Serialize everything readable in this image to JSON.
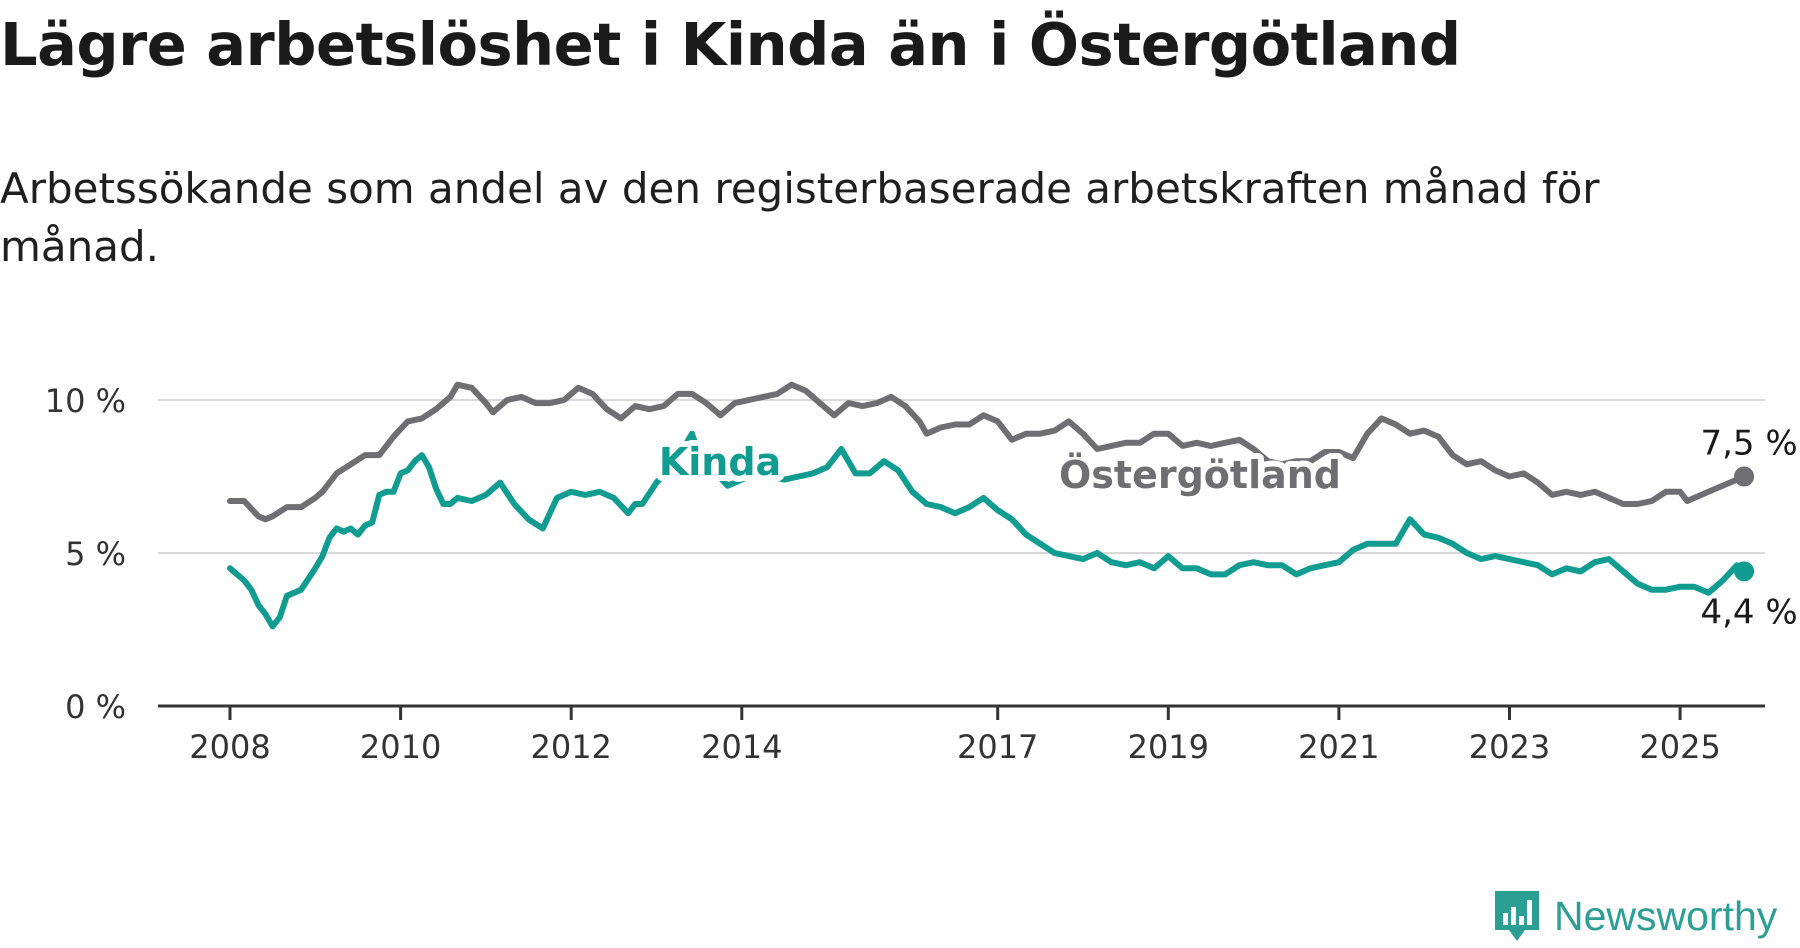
{
  "header": {
    "title": "Lägre arbetslöshet i Kinda än i Östergötland",
    "subtitle": "Arbetssökande som andel av den registerbaserade arbetskraften månad för månad."
  },
  "brand": {
    "name": "Newsworthy",
    "icon": "newsworthy-logo-icon",
    "color": "#2b9f94"
  },
  "chart_data": {
    "type": "line",
    "title": "Lägre arbetslöshet i Kinda än i Östergötland",
    "subtitle": "Arbetssökande som andel av den registerbaserade arbetskraften månad för månad.",
    "xlabel": "",
    "ylabel": "",
    "x_ticks": [
      "2008",
      "2010",
      "2012",
      "2014",
      "2017",
      "2019",
      "2021",
      "2023",
      "2025"
    ],
    "y_ticks": [
      "0 %",
      "5 %",
      "10 %"
    ],
    "ylim": [
      0,
      10
    ],
    "grid": true,
    "legend": "inline labels",
    "series": [
      {
        "name": "Östergötland",
        "color": "#6f6e72",
        "end_label": "7,5 %",
        "points": [
          [
            "2008-01",
            6.7
          ],
          [
            "2008-03",
            6.7
          ],
          [
            "2008-05",
            6.2
          ],
          [
            "2008-06",
            6.1
          ],
          [
            "2008-07",
            6.2
          ],
          [
            "2008-09",
            6.5
          ],
          [
            "2008-11",
            6.5
          ],
          [
            "2009-01",
            6.8
          ],
          [
            "2009-02",
            7.0
          ],
          [
            "2009-04",
            7.6
          ],
          [
            "2009-06",
            7.9
          ],
          [
            "2009-08",
            8.2
          ],
          [
            "2009-10",
            8.2
          ],
          [
            "2009-12",
            8.8
          ],
          [
            "2010-02",
            9.3
          ],
          [
            "2010-04",
            9.4
          ],
          [
            "2010-06",
            9.7
          ],
          [
            "2010-08",
            10.1
          ],
          [
            "2010-09",
            10.5
          ],
          [
            "2010-11",
            10.4
          ],
          [
            "2011-01",
            9.9
          ],
          [
            "2011-02",
            9.6
          ],
          [
            "2011-04",
            10.0
          ],
          [
            "2011-06",
            10.1
          ],
          [
            "2011-08",
            9.9
          ],
          [
            "2011-10",
            9.9
          ],
          [
            "2011-12",
            10.0
          ],
          [
            "2012-02",
            10.4
          ],
          [
            "2012-04",
            10.2
          ],
          [
            "2012-06",
            9.7
          ],
          [
            "2012-08",
            9.4
          ],
          [
            "2012-10",
            9.8
          ],
          [
            "2012-12",
            9.7
          ],
          [
            "2013-02",
            9.8
          ],
          [
            "2013-04",
            10.2
          ],
          [
            "2013-06",
            10.2
          ],
          [
            "2013-08",
            9.9
          ],
          [
            "2013-10",
            9.5
          ],
          [
            "2013-12",
            9.9
          ],
          [
            "2014-02",
            10.0
          ],
          [
            "2014-04",
            10.1
          ],
          [
            "2014-06",
            10.2
          ],
          [
            "2014-08",
            10.5
          ],
          [
            "2014-10",
            10.3
          ],
          [
            "2014-12",
            9.9
          ],
          [
            "2015-02",
            9.5
          ],
          [
            "2015-04",
            9.9
          ],
          [
            "2015-06",
            9.8
          ],
          [
            "2015-08",
            9.9
          ],
          [
            "2015-10",
            10.1
          ],
          [
            "2015-12",
            9.8
          ],
          [
            "2016-02",
            9.3
          ],
          [
            "2016-03",
            8.9
          ],
          [
            "2016-05",
            9.1
          ],
          [
            "2016-07",
            9.2
          ],
          [
            "2016-09",
            9.2
          ],
          [
            "2016-11",
            9.5
          ],
          [
            "2017-01",
            9.3
          ],
          [
            "2017-03",
            8.7
          ],
          [
            "2017-05",
            8.9
          ],
          [
            "2017-07",
            8.9
          ],
          [
            "2017-09",
            9.0
          ],
          [
            "2017-11",
            9.3
          ],
          [
            "2018-01",
            8.9
          ],
          [
            "2018-03",
            8.4
          ],
          [
            "2018-05",
            8.5
          ],
          [
            "2018-07",
            8.6
          ],
          [
            "2018-09",
            8.6
          ],
          [
            "2018-11",
            8.9
          ],
          [
            "2019-01",
            8.9
          ],
          [
            "2019-03",
            8.5
          ],
          [
            "2019-05",
            8.6
          ],
          [
            "2019-07",
            8.5
          ],
          [
            "2019-09",
            8.6
          ],
          [
            "2019-11",
            8.7
          ],
          [
            "2020-01",
            8.4
          ],
          [
            "2020-03",
            8.0
          ],
          [
            "2020-05",
            7.9
          ],
          [
            "2020-07",
            8.0
          ],
          [
            "2020-09",
            8.0
          ],
          [
            "2020-11",
            8.3
          ],
          [
            "2021-01",
            8.3
          ],
          [
            "2021-03",
            8.1
          ],
          [
            "2021-05",
            8.9
          ],
          [
            "2021-07",
            9.4
          ],
          [
            "2021-09",
            9.2
          ],
          [
            "2021-11",
            8.9
          ],
          [
            "2022-01",
            9.0
          ],
          [
            "2022-03",
            8.8
          ],
          [
            "2022-05",
            8.2
          ],
          [
            "2022-07",
            7.9
          ],
          [
            "2022-09",
            8.0
          ],
          [
            "2022-11",
            7.7
          ],
          [
            "2023-01",
            7.5
          ],
          [
            "2023-03",
            7.6
          ],
          [
            "2023-05",
            7.3
          ],
          [
            "2023-07",
            6.9
          ],
          [
            "2023-09",
            7.0
          ],
          [
            "2023-11",
            6.9
          ],
          [
            "2024-01",
            7.0
          ],
          [
            "2024-03",
            6.8
          ],
          [
            "2024-05",
            6.6
          ],
          [
            "2024-07",
            6.6
          ],
          [
            "2024-09",
            6.7
          ],
          [
            "2024-11",
            7.0
          ],
          [
            "2025-01",
            7.0
          ],
          [
            "2025-02",
            6.7
          ],
          [
            "2025-05",
            7.0
          ],
          [
            "2025-08",
            7.3
          ],
          [
            "2025-10",
            7.5
          ]
        ]
      },
      {
        "name": "Kinda",
        "color": "#119c92",
        "end_label": "4,4 %",
        "points": [
          [
            "2008-01",
            4.5
          ],
          [
            "2008-03",
            4.1
          ],
          [
            "2008-04",
            3.8
          ],
          [
            "2008-05",
            3.3
          ],
          [
            "2008-06",
            3.0
          ],
          [
            "2008-07",
            2.6
          ],
          [
            "2008-08",
            2.9
          ],
          [
            "2008-09",
            3.6
          ],
          [
            "2008-10",
            3.7
          ],
          [
            "2008-11",
            3.8
          ],
          [
            "2009-01",
            4.5
          ],
          [
            "2009-02",
            4.9
          ],
          [
            "2009-03",
            5.5
          ],
          [
            "2009-04",
            5.8
          ],
          [
            "2009-05",
            5.7
          ],
          [
            "2009-06",
            5.8
          ],
          [
            "2009-07",
            5.6
          ],
          [
            "2009-08",
            5.9
          ],
          [
            "2009-09",
            6.0
          ],
          [
            "2009-10",
            6.9
          ],
          [
            "2009-11",
            7.0
          ],
          [
            "2009-12",
            7.0
          ],
          [
            "2010-01",
            7.6
          ],
          [
            "2010-02",
            7.7
          ],
          [
            "2010-03",
            8.0
          ],
          [
            "2010-04",
            8.2
          ],
          [
            "2010-05",
            7.8
          ],
          [
            "2010-06",
            7.1
          ],
          [
            "2010-07",
            6.6
          ],
          [
            "2010-08",
            6.6
          ],
          [
            "2010-09",
            6.8
          ],
          [
            "2010-11",
            6.7
          ],
          [
            "2011-01",
            6.9
          ],
          [
            "2011-03",
            7.3
          ],
          [
            "2011-05",
            6.6
          ],
          [
            "2011-07",
            6.1
          ],
          [
            "2011-09",
            5.8
          ],
          [
            "2011-11",
            6.8
          ],
          [
            "2012-01",
            7.0
          ],
          [
            "2012-03",
            6.9
          ],
          [
            "2012-05",
            7.0
          ],
          [
            "2012-07",
            6.8
          ],
          [
            "2012-09",
            6.3
          ],
          [
            "2012-10",
            6.6
          ],
          [
            "2012-11",
            6.6
          ],
          [
            "2013-01",
            7.3
          ],
          [
            "2013-03",
            7.8
          ],
          [
            "2013-05",
            8.5
          ],
          [
            "2013-06",
            8.9
          ],
          [
            "2013-07",
            8.2
          ],
          [
            "2013-09",
            7.7
          ],
          [
            "2013-11",
            7.2
          ],
          [
            "2014-01",
            7.4
          ],
          [
            "2014-03",
            7.6
          ],
          [
            "2014-05",
            7.5
          ],
          [
            "2014-07",
            7.4
          ],
          [
            "2014-09",
            7.5
          ],
          [
            "2014-11",
            7.6
          ],
          [
            "2015-01",
            7.8
          ],
          [
            "2015-03",
            8.4
          ],
          [
            "2015-05",
            7.6
          ],
          [
            "2015-07",
            7.6
          ],
          [
            "2015-09",
            8.0
          ],
          [
            "2015-11",
            7.7
          ],
          [
            "2016-01",
            7.0
          ],
          [
            "2016-03",
            6.6
          ],
          [
            "2016-05",
            6.5
          ],
          [
            "2016-07",
            6.3
          ],
          [
            "2016-09",
            6.5
          ],
          [
            "2016-11",
            6.8
          ],
          [
            "2017-01",
            6.4
          ],
          [
            "2017-03",
            6.1
          ],
          [
            "2017-05",
            5.6
          ],
          [
            "2017-07",
            5.3
          ],
          [
            "2017-09",
            5.0
          ],
          [
            "2017-11",
            4.9
          ],
          [
            "2018-01",
            4.8
          ],
          [
            "2018-03",
            5.0
          ],
          [
            "2018-05",
            4.7
          ],
          [
            "2018-07",
            4.6
          ],
          [
            "2018-09",
            4.7
          ],
          [
            "2018-11",
            4.5
          ],
          [
            "2019-01",
            4.9
          ],
          [
            "2019-03",
            4.5
          ],
          [
            "2019-05",
            4.5
          ],
          [
            "2019-07",
            4.3
          ],
          [
            "2019-09",
            4.3
          ],
          [
            "2019-11",
            4.6
          ],
          [
            "2020-01",
            4.7
          ],
          [
            "2020-03",
            4.6
          ],
          [
            "2020-05",
            4.6
          ],
          [
            "2020-07",
            4.3
          ],
          [
            "2020-09",
            4.5
          ],
          [
            "2020-11",
            4.6
          ],
          [
            "2021-01",
            4.7
          ],
          [
            "2021-03",
            5.1
          ],
          [
            "2021-05",
            5.3
          ],
          [
            "2021-07",
            5.3
          ],
          [
            "2021-09",
            5.3
          ],
          [
            "2021-11",
            6.1
          ],
          [
            "2022-01",
            5.6
          ],
          [
            "2022-03",
            5.5
          ],
          [
            "2022-05",
            5.3
          ],
          [
            "2022-07",
            5.0
          ],
          [
            "2022-09",
            4.8
          ],
          [
            "2022-11",
            4.9
          ],
          [
            "2023-01",
            4.8
          ],
          [
            "2023-03",
            4.7
          ],
          [
            "2023-05",
            4.6
          ],
          [
            "2023-07",
            4.3
          ],
          [
            "2023-09",
            4.5
          ],
          [
            "2023-11",
            4.4
          ],
          [
            "2024-01",
            4.7
          ],
          [
            "2024-03",
            4.8
          ],
          [
            "2024-05",
            4.4
          ],
          [
            "2024-07",
            4.0
          ],
          [
            "2024-09",
            3.8
          ],
          [
            "2024-11",
            3.8
          ],
          [
            "2025-01",
            3.9
          ],
          [
            "2025-03",
            3.9
          ],
          [
            "2025-05",
            3.7
          ],
          [
            "2025-07",
            4.1
          ],
          [
            "2025-09",
            4.6
          ],
          [
            "2025-10",
            4.4
          ]
        ]
      }
    ]
  }
}
